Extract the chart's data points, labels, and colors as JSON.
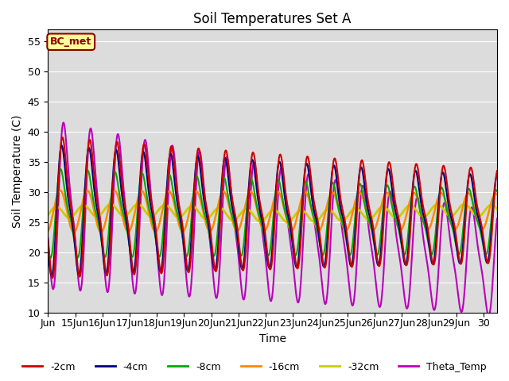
{
  "title": "Soil Temperatures Set A",
  "xlabel": "Time",
  "ylabel": "Soil Temperature (C)",
  "ylim": [
    10,
    57
  ],
  "xlim": [
    0,
    16.5
  ],
  "annotation": "BC_met",
  "annotation_bbox": {
    "boxstyle": "round,pad=0.3",
    "facecolor": "#FFFF99",
    "edgecolor": "#8B0000",
    "linewidth": 1.5
  },
  "annotation_color": "#8B0000",
  "bg_color": "#DCDCDC",
  "fig_bg": "#FFFFFF",
  "grid_color": "#FFFFFF",
  "lines": {
    "-2cm": {
      "color": "#CC0000",
      "lw": 1.5
    },
    "-4cm": {
      "color": "#000080",
      "lw": 1.5
    },
    "-8cm": {
      "color": "#00AA00",
      "lw": 1.5
    },
    "-16cm": {
      "color": "#FF8800",
      "lw": 1.8
    },
    "-32cm": {
      "color": "#CCCC00",
      "lw": 2.0
    },
    "Theta_Temp": {
      "color": "#BB00BB",
      "lw": 1.5
    }
  },
  "xtick_labels": [
    "Jun",
    "15Jun",
    "16Jun",
    "17Jun",
    "18Jun",
    "19Jun",
    "20Jun",
    "21Jun",
    "22Jun",
    "23Jun",
    "24Jun",
    "25Jun",
    "26Jun",
    "27Jun",
    "28Jun",
    "29Jun",
    "30"
  ],
  "xtick_positions": [
    0,
    1,
    2,
    3,
    4,
    5,
    6,
    7,
    8,
    9,
    10,
    11,
    12,
    13,
    14,
    15,
    16
  ],
  "ytick_vals": [
    10,
    15,
    20,
    25,
    30,
    35,
    40,
    45,
    50,
    55
  ],
  "legend_ncol": 6
}
